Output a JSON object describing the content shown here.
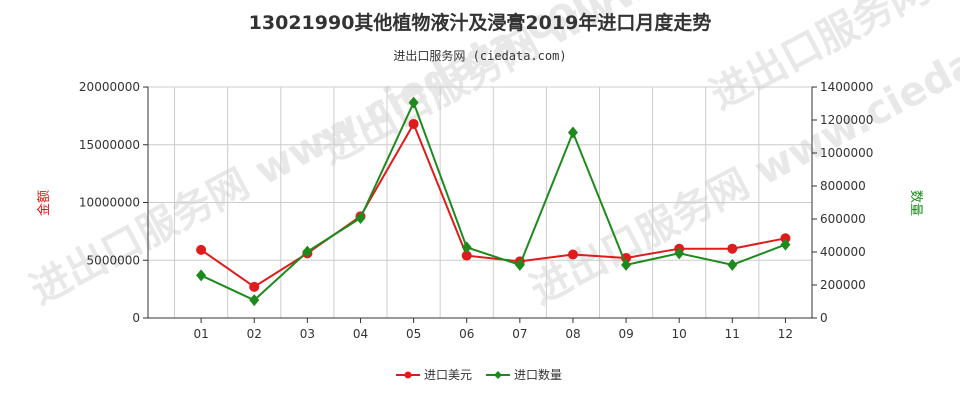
{
  "title": "13021990其他植物液汁及浸膏2019年进口月度走势",
  "subtitle": "进出口服务网 (ciedata.com)",
  "watermark": "进出口服务网 www.ciedata.com",
  "colors": {
    "amount": "#e01b1b",
    "quantity": "#1e8a1e",
    "grid": "#cccccc",
    "axis": "#333333"
  },
  "chart_data": {
    "type": "line",
    "categories": [
      "01",
      "02",
      "03",
      "04",
      "05",
      "06",
      "07",
      "08",
      "09",
      "10",
      "11",
      "12"
    ],
    "series": [
      {
        "name": "进口美元",
        "axis": "left",
        "color": "#e01b1b",
        "marker": "circle",
        "values": [
          5900000,
          2700000,
          5600000,
          8800000,
          16800000,
          5400000,
          4900000,
          5500000,
          5200000,
          6000000,
          6000000,
          6900000
        ]
      },
      {
        "name": "进口数量",
        "axis": "right",
        "color": "#1e8a1e",
        "marker": "diamond",
        "values": [
          258000,
          108000,
          402000,
          606000,
          1305000,
          428000,
          322000,
          1124000,
          322000,
          392000,
          322000,
          445000
        ]
      }
    ],
    "y_left": {
      "label": "金额",
      "min": 0,
      "max": 20000000,
      "ticks": [
        0,
        5000000,
        10000000,
        15000000,
        20000000
      ]
    },
    "y_right": {
      "label": "数量",
      "min": 0,
      "max": 1400000,
      "ticks": [
        0,
        200000,
        400000,
        600000,
        800000,
        1000000,
        1200000,
        1400000
      ]
    },
    "grid": true,
    "legend": "bottom-center"
  }
}
